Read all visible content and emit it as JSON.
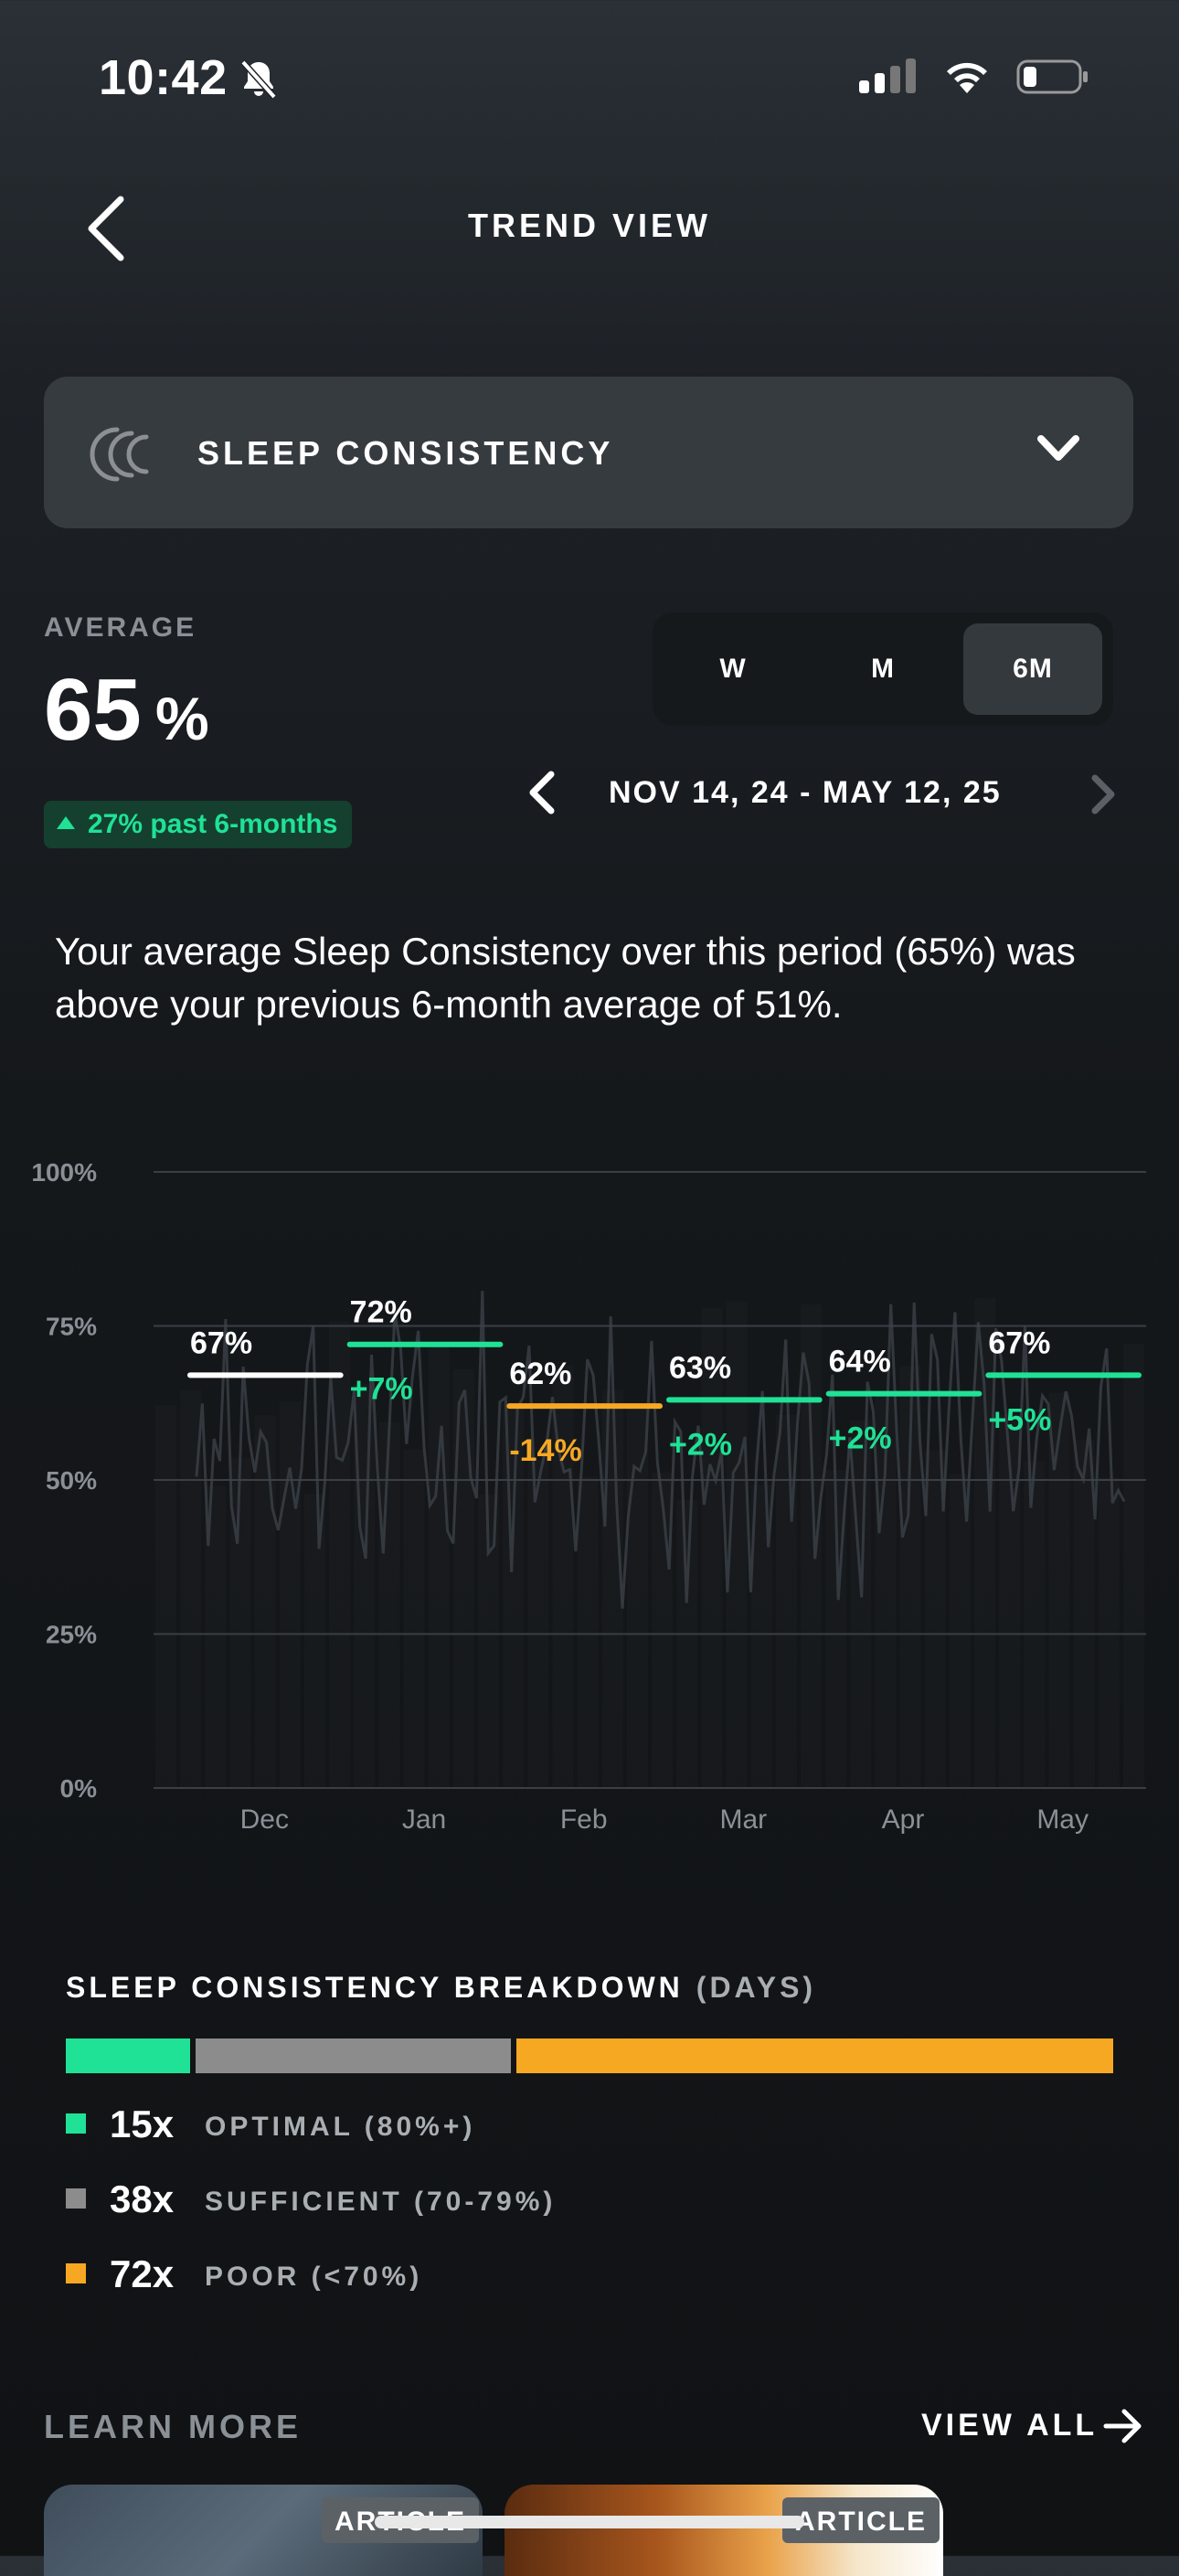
{
  "status_bar": {
    "time": "10:42"
  },
  "header": {
    "title": "TREND VIEW"
  },
  "metric_selector": {
    "label": "SLEEP CONSISTENCY"
  },
  "average": {
    "label": "AVERAGE",
    "value": "65",
    "unit": "%",
    "delta": "27% past 6-months"
  },
  "period_tabs": [
    {
      "label": "W",
      "active": false
    },
    {
      "label": "M",
      "active": false
    },
    {
      "label": "6M",
      "active": true
    }
  ],
  "date_range": "NOV 14, 24 - MAY 12, 25",
  "summary": "Your average Sleep Consistency over this period (65%) was above your previous 6-month average of 51%.",
  "chart_data": {
    "type": "line",
    "y_tick_labels": [
      "100%",
      "75%",
      "50%",
      "25%",
      "0%"
    ],
    "ylim": [
      0,
      100
    ],
    "categories": [
      "Dec",
      "Jan",
      "Feb",
      "Mar",
      "Apr",
      "May"
    ],
    "monthly_averages": [
      {
        "value": 67,
        "label": "67%",
        "change": ""
      },
      {
        "value": 72,
        "label": "72%",
        "change": "+7%"
      },
      {
        "value": 62,
        "label": "62%",
        "change": "-14%"
      },
      {
        "value": 63,
        "label": "63%",
        "change": "+2%"
      },
      {
        "value": 64,
        "label": "64%",
        "change": "+2%"
      },
      {
        "value": 67,
        "label": "67%",
        "change": "+5%"
      }
    ],
    "colors": {
      "first": "#ffffff",
      "up": "#1fe296",
      "down": "#f7a823"
    }
  },
  "breakdown": {
    "title": "SLEEP CONSISTENCY BREAKDOWN",
    "subtitle": "(DAYS)",
    "items": [
      {
        "count": "15x",
        "label": "OPTIMAL (80%+)",
        "days": 15,
        "color": "#1fe296"
      },
      {
        "count": "38x",
        "label": "SUFFICIENT (70-79%)",
        "days": 38,
        "color": "#8c8c8c"
      },
      {
        "count": "72x",
        "label": "POOR (<70%)",
        "days": 72,
        "color": "#f7a823"
      }
    ]
  },
  "learn_more": {
    "title": "LEARN MORE",
    "view_all": "VIEW ALL",
    "cards": [
      {
        "tag": "ARTICLE"
      },
      {
        "tag": "ARTICLE"
      }
    ]
  }
}
